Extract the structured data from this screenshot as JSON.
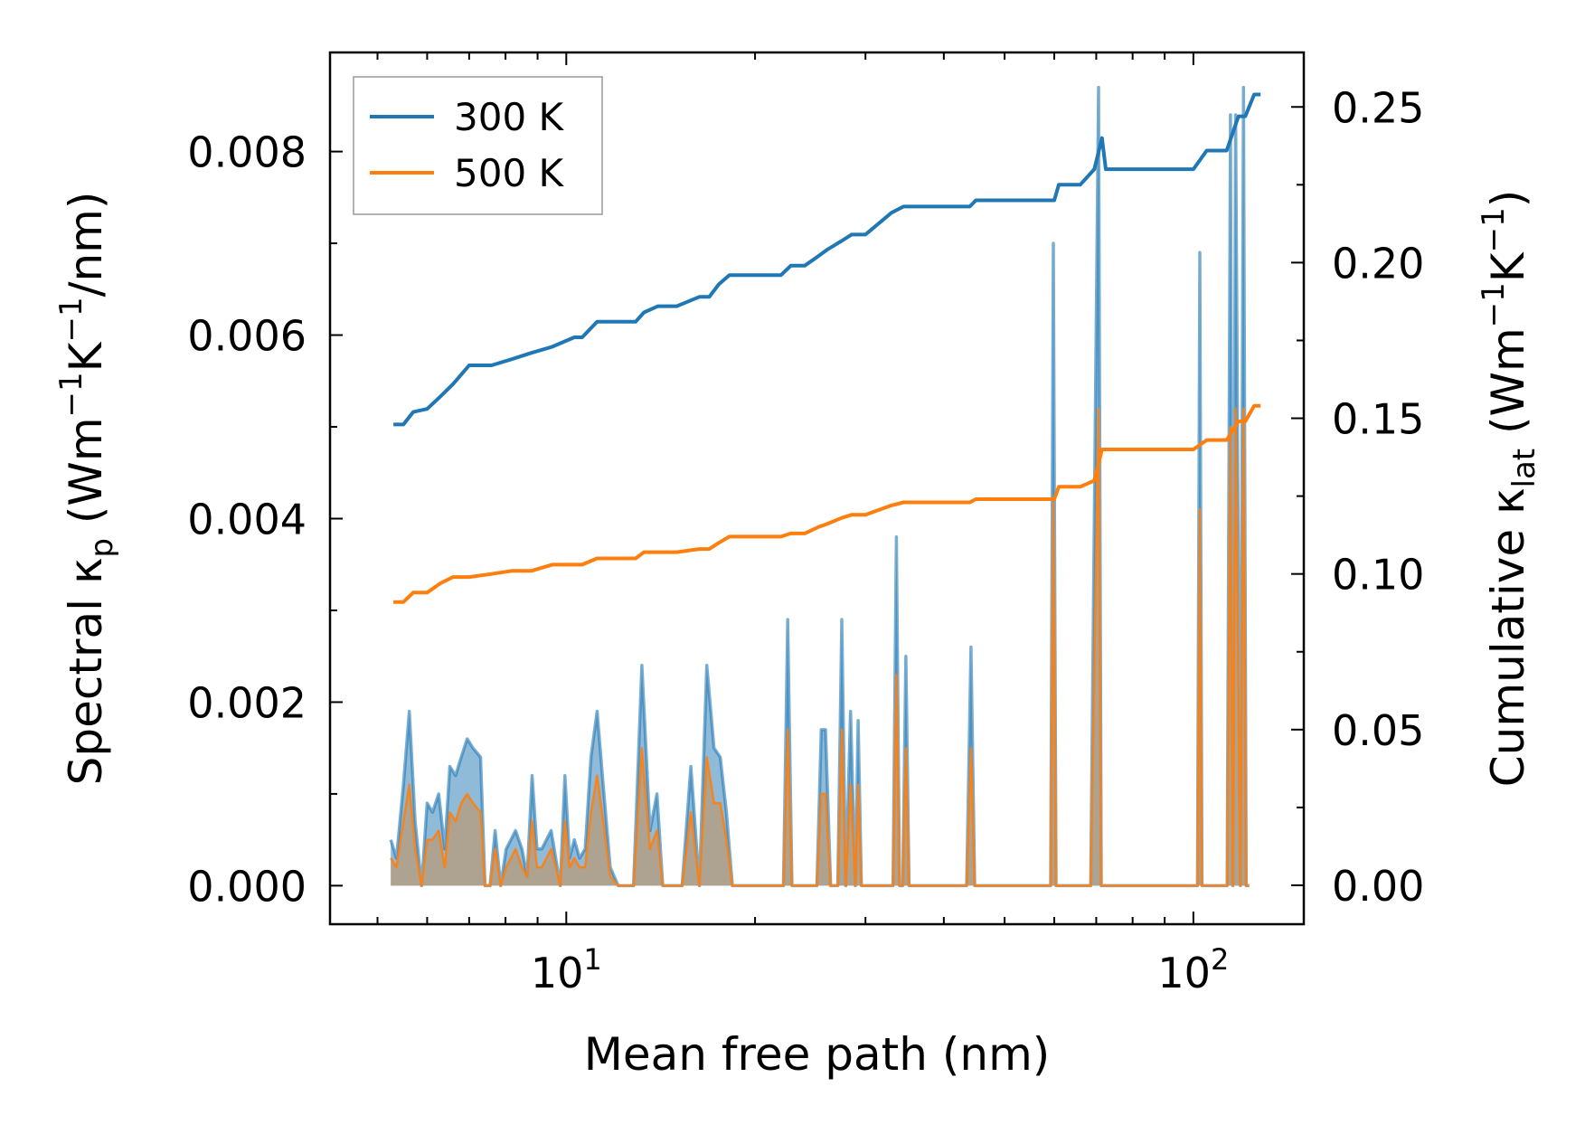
{
  "chart_data": {
    "type": "line",
    "title": "",
    "xlabel": "Mean free path (nm)",
    "ylabel_left": {
      "main": "Spectral κ",
      "sub": "p",
      "unit_prefix": " (Wm",
      "unit_exp1": "−1",
      "unit_mid": "K",
      "unit_exp2": "−1",
      "unit_suffix": "/nm)"
    },
    "ylabel_right": {
      "main": "Cumulative κ",
      "sub": "lat",
      "unit_prefix": " (Wm",
      "unit_exp1": "−1",
      "unit_mid": "K",
      "unit_exp2": "−1",
      "unit_suffix": ")"
    },
    "xscale": "log",
    "xlim": [
      4.2,
      150
    ],
    "ylim_left": [
      -0.00042,
      0.00908
    ],
    "ylim_right": [
      -0.0125,
      0.2675
    ],
    "x_ticks": [
      {
        "value": 10,
        "base": "10",
        "exp": "1"
      },
      {
        "value": 100,
        "base": "10",
        "exp": "2"
      }
    ],
    "y_left_ticks": [
      "0.000",
      "0.002",
      "0.004",
      "0.006",
      "0.008"
    ],
    "y_right_ticks": [
      "0.00",
      "0.05",
      "0.10",
      "0.15",
      "0.20",
      "0.25"
    ],
    "legend": {
      "location": "upper-left",
      "entries": [
        "300 K",
        "500 K"
      ]
    },
    "colors": {
      "300 K": "#1f77b4",
      "500 K": "#ff7f0e",
      "fill": "#b89a78"
    },
    "series": [
      {
        "name": "300 K",
        "axis": "right",
        "role": "cumulative",
        "x": [
          5.3,
          5.5,
          5.7,
          6.0,
          6.3,
          6.6,
          7.0,
          7.6,
          8.2,
          8.8,
          9.5,
          10.3,
          10.6,
          11.2,
          12.0,
          12.9,
          13.3,
          14.0,
          15.0,
          16.3,
          16.9,
          17.5,
          18.2,
          20.0,
          22.0,
          22.8,
          24.0,
          25.2,
          26.0,
          27.5,
          28.5,
          30.0,
          33.0,
          34.5,
          36.0,
          40.0,
          44.0,
          45.0,
          50.0,
          60.0,
          61.0,
          66.0,
          69.5,
          71.5,
          72.5,
          85.0,
          100.0,
          105.0,
          107.0,
          113.0,
          118.0,
          121.0,
          125.0,
          128.0
        ],
        "values": [
          0.148,
          0.148,
          0.152,
          0.153,
          0.157,
          0.161,
          0.167,
          0.167,
          0.169,
          0.171,
          0.173,
          0.176,
          0.176,
          0.181,
          0.181,
          0.181,
          0.184,
          0.186,
          0.186,
          0.189,
          0.189,
          0.193,
          0.196,
          0.196,
          0.196,
          0.199,
          0.199,
          0.202,
          0.204,
          0.207,
          0.209,
          0.209,
          0.216,
          0.218,
          0.218,
          0.218,
          0.218,
          0.22,
          0.22,
          0.22,
          0.225,
          0.225,
          0.23,
          0.24,
          0.23,
          0.23,
          0.23,
          0.236,
          0.236,
          0.236,
          0.247,
          0.247,
          0.254,
          0.254
        ]
      },
      {
        "name": "500 K",
        "axis": "right",
        "role": "cumulative",
        "x": [
          5.3,
          5.5,
          5.7,
          6.0,
          6.3,
          6.6,
          7.0,
          7.6,
          8.2,
          8.8,
          9.5,
          10.3,
          10.6,
          11.2,
          12.0,
          12.9,
          13.3,
          14.0,
          15.0,
          16.3,
          16.9,
          17.5,
          18.2,
          20.0,
          22.0,
          22.8,
          24.0,
          25.2,
          26.0,
          27.5,
          28.5,
          30.0,
          33.0,
          34.5,
          36.0,
          40.0,
          44.0,
          45.0,
          50.0,
          60.0,
          61.0,
          66.0,
          69.5,
          71.5,
          72.5,
          85.0,
          100.0,
          105.0,
          107.0,
          113.0,
          118.0,
          121.0,
          125.0,
          128.0
        ],
        "values": [
          0.091,
          0.091,
          0.094,
          0.094,
          0.097,
          0.099,
          0.099,
          0.1,
          0.101,
          0.101,
          0.103,
          0.103,
          0.103,
          0.105,
          0.105,
          0.105,
          0.107,
          0.107,
          0.107,
          0.108,
          0.108,
          0.11,
          0.112,
          0.112,
          0.112,
          0.113,
          0.113,
          0.115,
          0.116,
          0.118,
          0.119,
          0.119,
          0.122,
          0.123,
          0.123,
          0.123,
          0.123,
          0.124,
          0.124,
          0.124,
          0.128,
          0.128,
          0.13,
          0.14,
          0.14,
          0.14,
          0.14,
          0.143,
          0.143,
          0.143,
          0.149,
          0.149,
          0.154,
          0.154
        ]
      },
      {
        "name": "300 K",
        "axis": "left",
        "role": "spectral",
        "x": [
          5.25,
          5.36,
          5.5,
          5.62,
          5.74,
          5.88,
          6.0,
          6.12,
          6.26,
          6.4,
          6.52,
          6.66,
          6.8,
          6.95,
          7.1,
          7.3,
          7.42,
          7.56,
          7.7,
          7.86,
          8.02,
          8.16,
          8.3,
          8.5,
          8.66,
          8.82,
          8.98,
          9.14,
          9.3,
          9.46,
          9.62,
          9.78,
          9.95,
          10.12,
          10.3,
          10.5,
          10.72,
          10.95,
          11.2,
          11.45,
          11.75,
          12.1,
          12.4,
          12.8,
          13.2,
          13.6,
          13.95,
          14.25,
          14.55,
          14.9,
          15.3,
          15.8,
          16.3,
          16.75,
          17.2,
          17.6,
          18.0,
          18.4,
          18.8,
          19.2,
          22.2,
          22.55,
          22.9,
          23.4,
          25.1,
          25.5,
          25.9,
          26.4,
          27.1,
          27.5,
          27.9,
          28.4,
          28.9,
          29.2,
          29.55,
          29.95,
          30.3,
          30.6,
          33.2,
          33.6,
          34.0,
          34.4,
          34.8,
          35.2,
          35.6,
          36.2,
          43.5,
          44.2,
          44.8,
          59.2,
          59.8,
          60.4,
          67.8,
          68.6,
          70.6,
          71.3,
          72.2,
          75.2,
          101.5,
          102.4,
          103.2,
          104.2,
          113.2,
          114.6,
          115.6,
          116.8,
          118.8,
          120.2,
          121.4,
          122.8
        ],
        "values": [
          0.0005,
          0.0003,
          0.0011,
          0.0019,
          0.0007,
          0.0,
          0.0009,
          0.0008,
          0.001,
          0.0004,
          0.0013,
          0.0012,
          0.0014,
          0.0016,
          0.0015,
          0.0014,
          0.0,
          0.0,
          0.0006,
          0.0,
          0.0004,
          0.0005,
          0.0006,
          0.0004,
          0.0001,
          0.0012,
          0.0004,
          0.0004,
          0.0005,
          0.0006,
          0.0003,
          0.0,
          0.0012,
          0.0003,
          0.0005,
          0.0003,
          0.0004,
          0.0014,
          0.0019,
          0.0011,
          0.0002,
          0.0,
          0.0,
          0.0,
          0.0024,
          0.0006,
          0.001,
          0.0,
          0.0,
          0.0,
          0.0,
          0.0013,
          0.0,
          0.0024,
          0.0015,
          0.0014,
          0.0008,
          0.0,
          0.0,
          0.0,
          0.0,
          0.0029,
          0.0,
          0.0,
          0.0,
          0.0017,
          0.0017,
          0.0,
          0.0,
          0.0029,
          0.0,
          0.0019,
          0.0,
          0.0018,
          0.0,
          0.0,
          0.0,
          0.0,
          0.0,
          0.0038,
          0.0,
          0.0,
          0.0025,
          0.0,
          0.0,
          0.0,
          0.0,
          0.0026,
          0.0,
          0.0,
          0.007,
          0.0,
          0.0,
          0.0,
          0.0087,
          0.0,
          0.0,
          0.0,
          0.0,
          0.0069,
          0.0,
          0.0,
          0.0,
          0.0084,
          0.0,
          0.0084,
          0.0,
          0.0087,
          0.0,
          0.0
        ]
      },
      {
        "name": "500 K",
        "axis": "left",
        "role": "spectral",
        "x": [
          5.25,
          5.36,
          5.5,
          5.62,
          5.74,
          5.88,
          6.0,
          6.12,
          6.26,
          6.4,
          6.52,
          6.66,
          6.8,
          6.95,
          7.1,
          7.3,
          7.42,
          7.56,
          7.7,
          7.86,
          8.02,
          8.16,
          8.3,
          8.5,
          8.66,
          8.82,
          8.98,
          9.14,
          9.3,
          9.46,
          9.62,
          9.78,
          9.95,
          10.12,
          10.3,
          10.5,
          10.72,
          10.95,
          11.2,
          11.45,
          11.75,
          12.1,
          12.4,
          12.8,
          13.2,
          13.6,
          13.95,
          14.25,
          14.55,
          14.9,
          15.3,
          15.8,
          16.3,
          16.75,
          17.2,
          17.6,
          18.0,
          18.4,
          18.8,
          19.2,
          22.2,
          22.55,
          22.9,
          23.4,
          25.1,
          25.5,
          25.9,
          26.4,
          27.1,
          27.5,
          27.9,
          28.4,
          28.9,
          29.2,
          29.55,
          29.95,
          30.3,
          30.6,
          33.2,
          33.6,
          34.0,
          34.4,
          34.8,
          35.2,
          35.6,
          36.2,
          43.5,
          44.2,
          44.8,
          59.2,
          59.8,
          60.4,
          67.8,
          68.6,
          70.6,
          71.3,
          72.2,
          75.2,
          101.5,
          102.4,
          103.2,
          104.2,
          113.2,
          114.6,
          115.6,
          116.8,
          118.8,
          120.2,
          121.4,
          122.8
        ],
        "values": [
          0.0003,
          0.0002,
          0.0007,
          0.0011,
          0.0004,
          0.0,
          0.0005,
          0.0005,
          0.0006,
          0.0002,
          0.0008,
          0.0007,
          0.0009,
          0.001,
          0.0009,
          0.0008,
          0.0,
          0.0,
          0.0004,
          0.0,
          0.0002,
          0.0003,
          0.0004,
          0.0002,
          0.0001,
          0.0007,
          0.0002,
          0.0002,
          0.0003,
          0.0004,
          0.0002,
          0.0,
          0.0007,
          0.0002,
          0.0003,
          0.0002,
          0.0002,
          0.0008,
          0.0012,
          0.0007,
          0.0001,
          0.0,
          0.0,
          0.0,
          0.0015,
          0.0004,
          0.0006,
          0.0,
          0.0,
          0.0,
          0.0,
          0.0008,
          0.0,
          0.0014,
          0.0009,
          0.0009,
          0.0005,
          0.0,
          0.0,
          0.0,
          0.0,
          0.0017,
          0.0,
          0.0,
          0.0,
          0.001,
          0.001,
          0.0,
          0.0,
          0.0017,
          0.0,
          0.0011,
          0.0,
          0.0011,
          0.0,
          0.0,
          0.0,
          0.0,
          0.0,
          0.0023,
          0.0,
          0.0,
          0.0015,
          0.0,
          0.0,
          0.0,
          0.0,
          0.0015,
          0.0,
          0.0,
          0.0042,
          0.0,
          0.0,
          0.0,
          0.0052,
          0.0,
          0.0,
          0.0,
          0.0,
          0.0041,
          0.0,
          0.0,
          0.0,
          0.005,
          0.0,
          0.0052,
          0.0,
          0.0052,
          0.0,
          0.0
        ]
      }
    ]
  }
}
